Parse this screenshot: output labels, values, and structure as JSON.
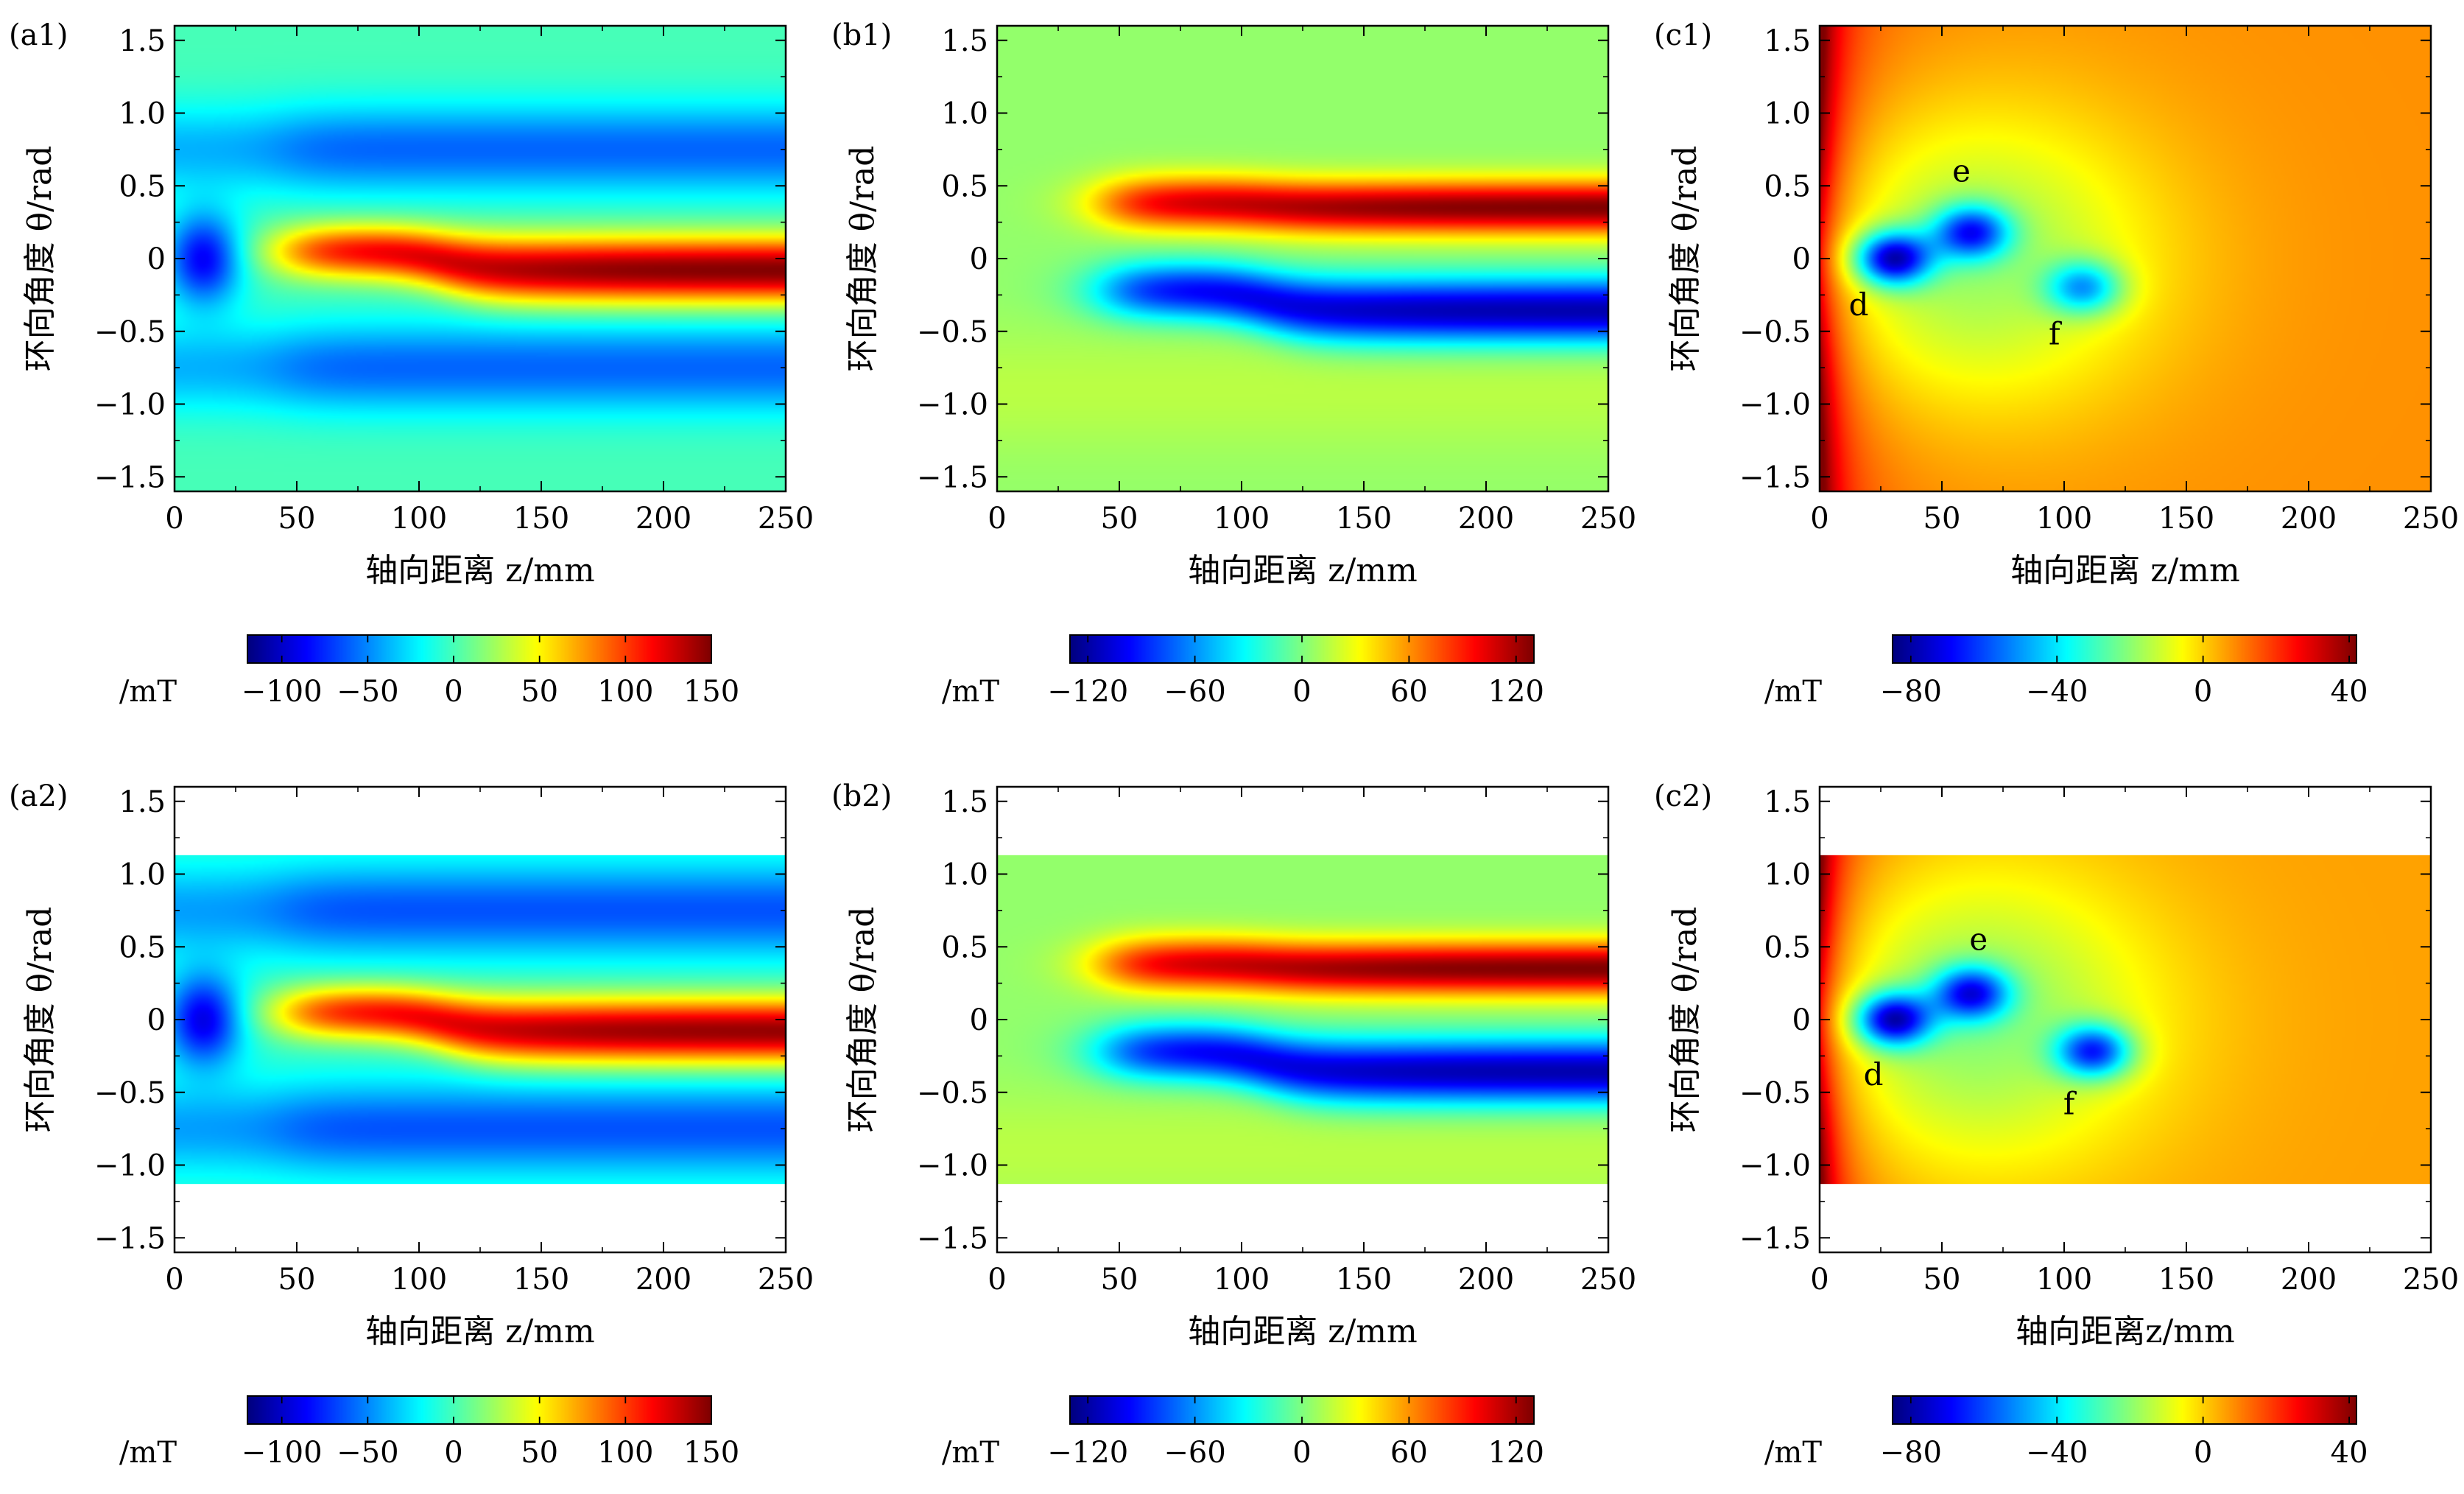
{
  "colormap": {
    "name": "jet",
    "stops": [
      "#00007f",
      "#0000ff",
      "#007fff",
      "#00ffff",
      "#7fff7f",
      "#ffff00",
      "#ff7f00",
      "#ff0000",
      "#7f0000"
    ]
  },
  "chart_data": [
    {
      "id": "a1",
      "type": "heatmap",
      "panel_label": "(a1)",
      "xlabel": "轴向距离 z/mm",
      "ylabel": "环向角度 θ/rad",
      "xlim": [
        0,
        250
      ],
      "ylim": [
        -1.6,
        1.6
      ],
      "data_extent_theta": [
        -1.6,
        1.6
      ],
      "xticks": [
        0,
        50,
        100,
        150,
        200,
        250
      ],
      "xtick_labels": [
        "0",
        "50",
        "100",
        "150",
        "200",
        "250"
      ],
      "yticks": [
        -1.5,
        -1.0,
        -0.5,
        0,
        0.5,
        1.0,
        1.5
      ],
      "ytick_labels": [
        "−1.5",
        "−1.0",
        "−0.5",
        "0",
        "0.5",
        "1.0",
        "1.5"
      ],
      "colorbar": {
        "unit": "/mT",
        "range": [
          -120,
          150
        ],
        "ticks": [
          -100,
          -50,
          0,
          50,
          100,
          150
        ],
        "tick_labels": [
          "−100",
          "−50",
          "0",
          "50",
          "100",
          "150"
        ]
      },
      "field": {
        "kind": "axial",
        "peak": 150,
        "trough": -100,
        "notch_start_z": 30,
        "notch_step_z": 110,
        "background": 0
      },
      "annotations": []
    },
    {
      "id": "b1",
      "type": "heatmap",
      "panel_label": "(b1)",
      "xlabel": "轴向距离 z/mm",
      "ylabel": "环向角度 θ/rad",
      "xlim": [
        0,
        250
      ],
      "ylim": [
        -1.6,
        1.6
      ],
      "data_extent_theta": [
        -1.6,
        1.6
      ],
      "xticks": [
        0,
        50,
        100,
        150,
        200,
        250
      ],
      "xtick_labels": [
        "0",
        "50",
        "100",
        "150",
        "200",
        "250"
      ],
      "yticks": [
        -1.5,
        -1.0,
        -0.5,
        0,
        0.5,
        1.0,
        1.5
      ],
      "ytick_labels": [
        "−1.5",
        "−1.0",
        "−0.5",
        "0",
        "0.5",
        "1.0",
        "1.5"
      ],
      "colorbar": {
        "unit": "/mT",
        "range": [
          -130,
          130
        ],
        "ticks": [
          -120,
          -60,
          0,
          60,
          120
        ],
        "tick_labels": [
          "−120",
          "−60",
          "0",
          "60",
          "120"
        ]
      },
      "field": {
        "kind": "circumferential",
        "peak": 125,
        "trough": -125,
        "notch_start_z": 30,
        "notch_step_z": 110,
        "background": 5
      },
      "annotations": []
    },
    {
      "id": "c1",
      "type": "heatmap",
      "panel_label": "(c1)",
      "xlabel": "轴向距离 z/mm",
      "ylabel": "环向角度 θ/rad",
      "xlim": [
        0,
        250
      ],
      "ylim": [
        -1.6,
        1.6
      ],
      "data_extent_theta": [
        -1.6,
        1.6
      ],
      "xticks": [
        0,
        50,
        100,
        150,
        200,
        250
      ],
      "xtick_labels": [
        "0",
        "50",
        "100",
        "150",
        "200",
        "250"
      ],
      "yticks": [
        -1.5,
        -1.0,
        -0.5,
        0,
        0.5,
        1.0,
        1.5
      ],
      "ytick_labels": [
        "−1.5",
        "−1.0",
        "−0.5",
        "0",
        "0.5",
        "1.0",
        "1.5"
      ],
      "colorbar": {
        "unit": "/mT",
        "range": [
          -85,
          42
        ],
        "ticks": [
          -80,
          -40,
          0,
          40
        ],
        "tick_labels": [
          "−80",
          "−40",
          "0",
          "40"
        ]
      },
      "field": {
        "kind": "radial",
        "background": 8,
        "edge_peak": 40,
        "wells": [
          {
            "z": 30,
            "theta": 0.0,
            "depth": -80
          },
          {
            "z": 62,
            "theta": 0.18,
            "depth": -62
          },
          {
            "z": 108,
            "theta": -0.2,
            "depth": -48
          }
        ]
      },
      "annotations": [
        {
          "text": "d",
          "z": 16,
          "theta": -0.32
        },
        {
          "text": "e",
          "z": 58,
          "theta": 0.6
        },
        {
          "text": "f",
          "z": 96,
          "theta": -0.52
        }
      ]
    },
    {
      "id": "a2",
      "type": "heatmap",
      "panel_label": "(a2)",
      "xlabel": "轴向距离 z/mm",
      "ylabel": "环向角度 θ/rad",
      "xlim": [
        0,
        250
      ],
      "ylim": [
        -1.6,
        1.6
      ],
      "data_extent_theta": [
        -1.13,
        1.13
      ],
      "xticks": [
        0,
        50,
        100,
        150,
        200,
        250
      ],
      "xtick_labels": [
        "0",
        "50",
        "100",
        "150",
        "200",
        "250"
      ],
      "yticks": [
        -1.5,
        -1.0,
        -0.5,
        0,
        0.5,
        1.0,
        1.5
      ],
      "ytick_labels": [
        "−1.5",
        "−1.0",
        "−0.5",
        "0",
        "0.5",
        "1.0",
        "1.5"
      ],
      "colorbar": {
        "unit": "/mT",
        "range": [
          -120,
          150
        ],
        "ticks": [
          -100,
          -50,
          0,
          50,
          100,
          150
        ],
        "tick_labels": [
          "−100",
          "−50",
          "0",
          "50",
          "100",
          "150"
        ]
      },
      "field": {
        "kind": "axial",
        "peak": 150,
        "trough": -100,
        "notch_start_z": 30,
        "notch_step_z": 110,
        "background": -5
      },
      "annotations": []
    },
    {
      "id": "b2",
      "type": "heatmap",
      "panel_label": "(b2)",
      "xlabel": "轴向距离 z/mm",
      "ylabel": "环向角度 θ/rad",
      "xlim": [
        0,
        250
      ],
      "ylim": [
        -1.6,
        1.6
      ],
      "data_extent_theta": [
        -1.13,
        1.13
      ],
      "xticks": [
        0,
        50,
        100,
        150,
        200,
        250
      ],
      "xtick_labels": [
        "0",
        "50",
        "100",
        "150",
        "200",
        "250"
      ],
      "yticks": [
        -1.5,
        -1.0,
        -0.5,
        0,
        0.5,
        1.0,
        1.5
      ],
      "ytick_labels": [
        "−1.5",
        "−1.0",
        "−0.5",
        "0",
        "0.5",
        "1.0",
        "1.5"
      ],
      "colorbar": {
        "unit": "/mT",
        "range": [
          -130,
          130
        ],
        "ticks": [
          -120,
          -60,
          0,
          60,
          120
        ],
        "tick_labels": [
          "−120",
          "−60",
          "0",
          "60",
          "120"
        ]
      },
      "field": {
        "kind": "circumferential",
        "peak": 125,
        "trough": -125,
        "notch_start_z": 30,
        "notch_step_z": 110,
        "background": 5
      },
      "annotations": []
    },
    {
      "id": "c2",
      "type": "heatmap",
      "panel_label": "(c2)",
      "xlabel": "轴向距离z/mm",
      "ylabel": "环向角度 θ/rad",
      "xlim": [
        0,
        250
      ],
      "ylim": [
        -1.6,
        1.6
      ],
      "data_extent_theta": [
        -1.13,
        1.13
      ],
      "xticks": [
        0,
        50,
        100,
        150,
        200,
        250
      ],
      "xtick_labels": [
        "0",
        "50",
        "100",
        "150",
        "200",
        "250"
      ],
      "yticks": [
        -1.5,
        -1.0,
        -0.5,
        0,
        0.5,
        1.0,
        1.5
      ],
      "ytick_labels": [
        "−1.5",
        "−1.0",
        "−0.5",
        "0",
        "0.5",
        "1.0",
        "1.5"
      ],
      "colorbar": {
        "unit": "/mT",
        "range": [
          -85,
          42
        ],
        "ticks": [
          -80,
          -40,
          0,
          40
        ],
        "tick_labels": [
          "−80",
          "−40",
          "0",
          "40"
        ]
      },
      "field": {
        "kind": "radial",
        "background": 6,
        "edge_peak": 40,
        "wells": [
          {
            "z": 30,
            "theta": 0.0,
            "depth": -78
          },
          {
            "z": 62,
            "theta": 0.18,
            "depth": -64
          },
          {
            "z": 112,
            "theta": -0.22,
            "depth": -66
          }
        ]
      },
      "annotations": [
        {
          "text": "d",
          "z": 22,
          "theta": -0.38
        },
        {
          "text": "e",
          "z": 65,
          "theta": 0.55
        },
        {
          "text": "f",
          "z": 102,
          "theta": -0.58
        }
      ]
    }
  ]
}
